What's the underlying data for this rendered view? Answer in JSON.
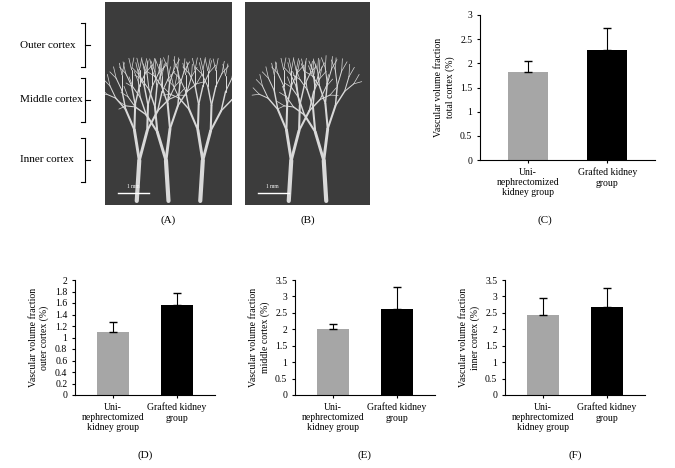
{
  "image_panels": [
    {
      "panel_label": "(A)",
      "scale_bar": "1 mm"
    },
    {
      "panel_label": "(B)",
      "scale_bar": "1 mm"
    }
  ],
  "cortex_regions": [
    "Outer cortex",
    "Middle cortex",
    "Inner cortex"
  ],
  "chart_data": [
    {
      "type": "bar",
      "panel_label": "(C)",
      "categories": [
        "Uni-nephrectomized kidney group",
        "Grafted kidney group"
      ],
      "values": [
        1.82,
        2.28
      ],
      "errors": [
        0.23,
        0.45
      ],
      "colors": [
        "#a6a6a6",
        "#000000"
      ],
      "ylabel": "Vascular volume fraction total cortex (%)",
      "ylim": [
        0,
        3
      ],
      "yticks": [
        0,
        0.5,
        1,
        1.5,
        2,
        2.5,
        3
      ]
    },
    {
      "type": "bar",
      "panel_label": "(D)",
      "categories": [
        "Uni-nephrectomized kidney group",
        "Grafted kidney group"
      ],
      "values": [
        1.1,
        1.56
      ],
      "errors": [
        0.17,
        0.21
      ],
      "colors": [
        "#a6a6a6",
        "#000000"
      ],
      "ylabel": "Vascular volume fraction outer cortex (%)",
      "ylim": [
        0,
        2
      ],
      "yticks": [
        0,
        0.2,
        0.4,
        0.6,
        0.8,
        1,
        1.2,
        1.4,
        1.6,
        1.8,
        2
      ]
    },
    {
      "type": "bar",
      "panel_label": "(E)",
      "categories": [
        "Uni-nephrectomized kidney group",
        "Grafted kidney group"
      ],
      "values": [
        2.0,
        2.62
      ],
      "errors": [
        0.15,
        0.68
      ],
      "colors": [
        "#a6a6a6",
        "#000000"
      ],
      "ylabel": "Vascular volume fraction middle cortex (%)",
      "ylim": [
        0,
        3.5
      ],
      "yticks": [
        0,
        0.5,
        1,
        1.5,
        2,
        2.5,
        3,
        3.5
      ]
    },
    {
      "type": "bar",
      "panel_label": "(F)",
      "categories": [
        "Uni-nephrectomized kidney group",
        "Grafted kidney group"
      ],
      "values": [
        2.45,
        2.68
      ],
      "errors": [
        0.5,
        0.57
      ],
      "colors": [
        "#a6a6a6",
        "#000000"
      ],
      "ylabel": "Vascular volume fraction inner cortex (%)",
      "ylim": [
        0,
        3.5
      ],
      "yticks": [
        0,
        0.5,
        1,
        1.5,
        2,
        2.5,
        3,
        3.5
      ]
    }
  ]
}
